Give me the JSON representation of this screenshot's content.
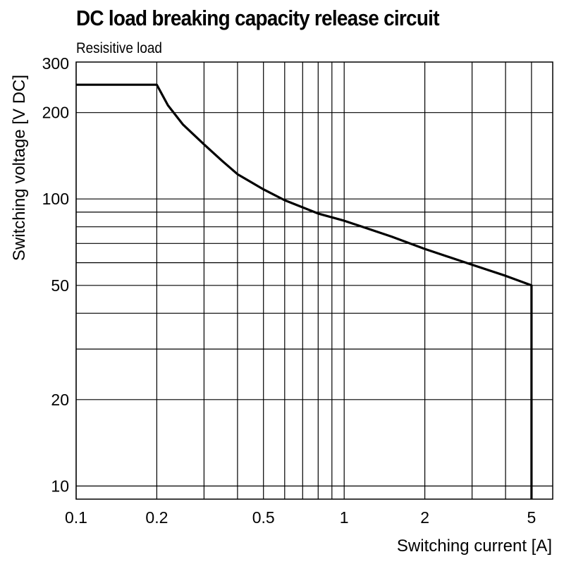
{
  "chart_data": {
    "type": "line",
    "title": "DC load breaking capacity release circuit",
    "subtitle": "Resisitive load",
    "xlabel": "Switching current [A]",
    "ylabel": "Switching voltage [V DC]",
    "xscale": "log",
    "yscale": "log",
    "xlim": [
      0.1,
      6
    ],
    "ylim": [
      9,
      300
    ],
    "grid": true,
    "x_tick_labels": [
      "0.1",
      "0.2",
      "0.5",
      "1",
      "2",
      "5"
    ],
    "y_tick_labels": [
      "300",
      "200",
      "100",
      "50",
      "20",
      "10"
    ],
    "x_gridlines": [
      0.1,
      0.2,
      0.3,
      0.4,
      0.5,
      0.6,
      0.7,
      0.8,
      0.9,
      1,
      2,
      3,
      4,
      5
    ],
    "y_gridlines": [
      10,
      20,
      30,
      40,
      50,
      60,
      70,
      80,
      90,
      100,
      200
    ],
    "series": [
      {
        "x": [
          0.1,
          0.2,
          0.22,
          0.25,
          0.3,
          0.35,
          0.4,
          0.5,
          0.6,
          0.8,
          1,
          1.5,
          2,
          3,
          4,
          5,
          5
        ],
        "y": [
          250,
          250,
          212,
          182,
          155,
          136,
          122,
          108,
          99,
          89,
          84,
          74,
          67,
          59,
          54,
          50,
          9
        ]
      }
    ]
  }
}
